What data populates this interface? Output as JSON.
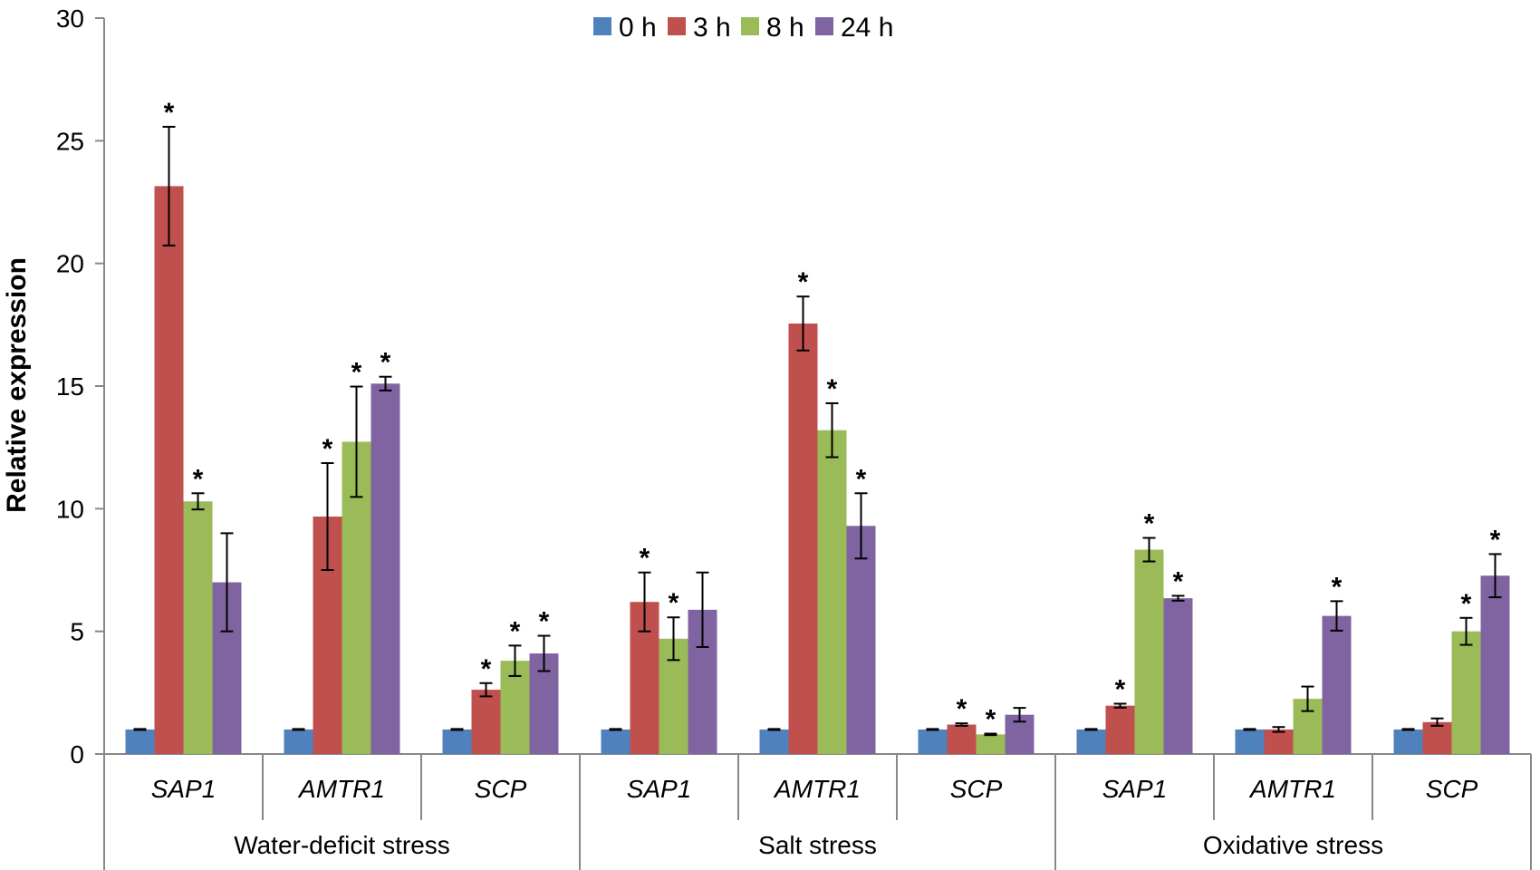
{
  "chart_data": {
    "type": "bar",
    "ylabel": "Relative expression",
    "ylim": [
      0,
      30
    ],
    "yticks": [
      0,
      5,
      10,
      15,
      20,
      25,
      30
    ],
    "grid": false,
    "legend_position": "top-center",
    "categories": [
      "SAP1",
      "AMTR1",
      "SCP",
      "SAP1",
      "AMTR1",
      "SCP",
      "SAP1",
      "AMTR1",
      "SCP"
    ],
    "groups": [
      {
        "label": "Water-deficit stress",
        "categories": [
          0,
          1,
          2
        ]
      },
      {
        "label": "Salt stress",
        "categories": [
          3,
          4,
          5
        ]
      },
      {
        "label": "Oxidative stress",
        "categories": [
          6,
          7,
          8
        ]
      }
    ],
    "series": [
      {
        "name": "0 h",
        "color": "#4F81BD",
        "values": [
          1.0,
          1.0,
          1.0,
          1.0,
          1.0,
          1.0,
          1.0,
          1.0,
          1.0
        ],
        "errors": [
          0.02,
          0.02,
          0.02,
          0.02,
          0.02,
          0.02,
          0.02,
          0.02,
          0.02
        ],
        "significant": [
          false,
          false,
          false,
          false,
          false,
          false,
          false,
          false,
          false
        ]
      },
      {
        "name": "3 h",
        "color": "#C0504D",
        "values": [
          23.15,
          9.68,
          2.62,
          6.2,
          17.55,
          1.2,
          1.97,
          1.0,
          1.3
        ],
        "errors": [
          2.42,
          2.18,
          0.27,
          1.2,
          1.1,
          0.05,
          0.08,
          0.1,
          0.15
        ],
        "significant": [
          true,
          true,
          true,
          true,
          true,
          true,
          true,
          false,
          false
        ]
      },
      {
        "name": "8 h",
        "color": "#9BBB59",
        "values": [
          10.3,
          12.73,
          3.8,
          4.7,
          13.2,
          0.8,
          8.33,
          2.25,
          5.0
        ],
        "errors": [
          0.33,
          2.25,
          0.62,
          0.87,
          1.1,
          0.03,
          0.48,
          0.5,
          0.55
        ],
        "significant": [
          true,
          true,
          true,
          true,
          true,
          true,
          true,
          false,
          true
        ]
      },
      {
        "name": "24 h",
        "color": "#8064A2",
        "values": [
          7.0,
          15.1,
          4.1,
          5.88,
          9.3,
          1.6,
          6.35,
          5.63,
          7.27
        ],
        "errors": [
          2.0,
          0.28,
          0.72,
          1.52,
          1.33,
          0.28,
          0.1,
          0.6,
          0.88
        ],
        "significant": [
          false,
          true,
          true,
          false,
          true,
          false,
          true,
          true,
          true
        ]
      }
    ],
    "significance_marker": "*"
  }
}
